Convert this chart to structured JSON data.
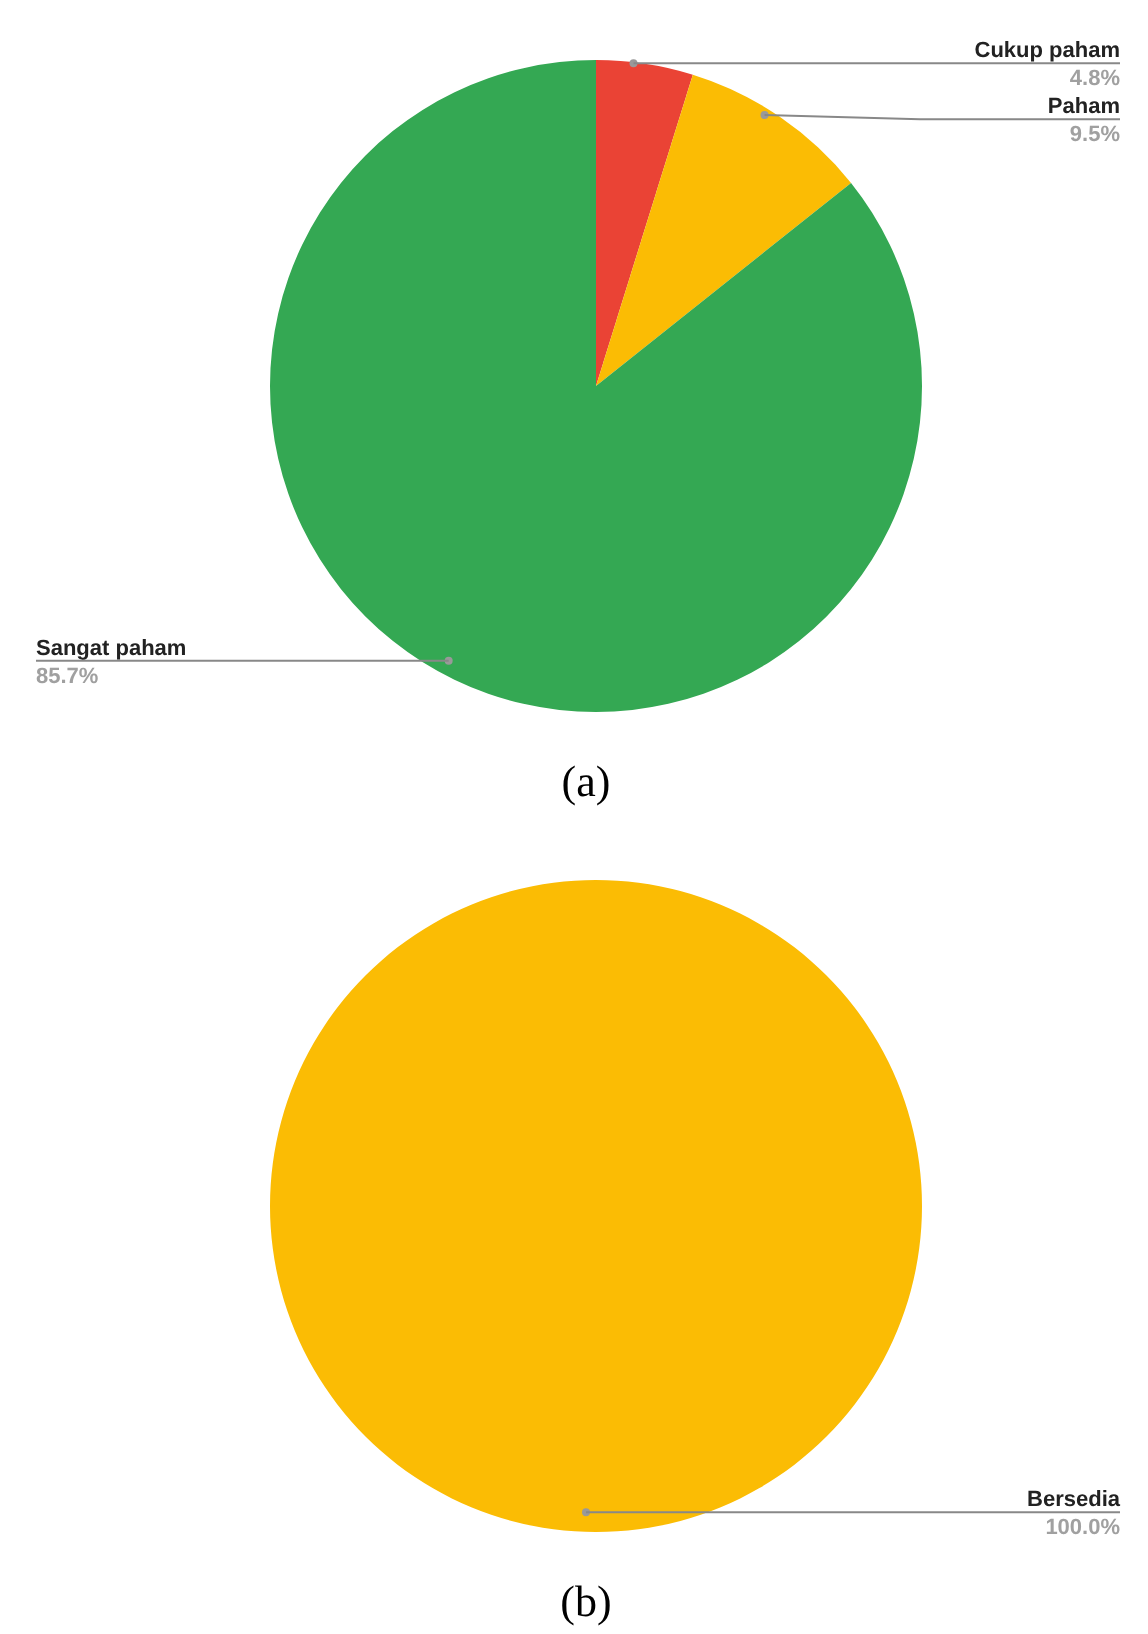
{
  "chart_data": [
    {
      "type": "pie",
      "categories": [
        "Cukup paham",
        "Paham",
        "Sangat paham"
      ],
      "values": [
        4.8,
        9.5,
        85.7
      ],
      "colors": [
        "#ea4335",
        "#fbbc04",
        "#34a853"
      ],
      "value_labels": [
        "4.8%",
        "9.5%",
        "85.7%"
      ],
      "annotations": [
        "(a)"
      ]
    },
    {
      "type": "pie",
      "categories": [
        "Bersedia"
      ],
      "values": [
        100.0
      ],
      "colors": [
        "#fbbc04"
      ],
      "value_labels": [
        "100.0%"
      ],
      "annotations": [
        "(b)"
      ]
    }
  ]
}
